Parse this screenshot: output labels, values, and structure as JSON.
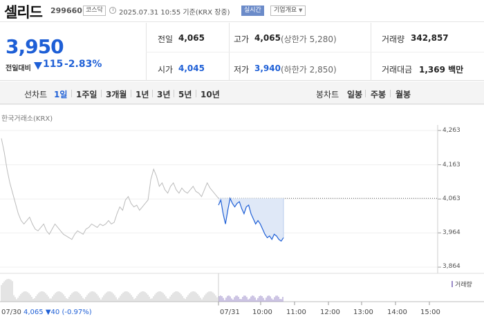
{
  "header": {
    "name": "셀리드",
    "code": "299660",
    "market": "코스닥",
    "timestamp": "2025.07.31 10:55 기준(KRX 장중)",
    "realtime_label": "실시간",
    "overview_label": "기업개요"
  },
  "price": {
    "current": "3,950",
    "change_label": "전일대비",
    "change_value": "115",
    "change_direction": "down",
    "change_pct": "-2.83%",
    "color": "#1e5fd6"
  },
  "stats": {
    "prev_close_label": "전일",
    "prev_close": "4,065",
    "high_label": "고가",
    "high": "4,065",
    "upper_limit": "(상한가 5,280)",
    "volume_label": "거래량",
    "volume": "342,857",
    "open_label": "시가",
    "open": "4,045",
    "low_label": "저가",
    "low": "3,940",
    "lower_limit": "(하한가 2,850)",
    "amount_label": "거래대금",
    "amount": "1,369 백만"
  },
  "tabs": {
    "line_label": "선차트",
    "line": [
      "1일",
      "1주일",
      "3개월",
      "1년",
      "3년",
      "5년",
      "10년"
    ],
    "active": "1일",
    "candle_label": "봉차트",
    "candle": [
      "일봉",
      "주봉",
      "월봉"
    ]
  },
  "chart": {
    "source": "한국거래소(KRX)",
    "y_ticks": [
      "4,263",
      "4,163",
      "4,063",
      "3,964",
      "3,864"
    ],
    "volume_label": "거래량",
    "x_ticks": [
      "07/31",
      "10:00",
      "11:00",
      "12:00",
      "13:00",
      "14:00",
      "15:00"
    ],
    "footer_date": "07/30",
    "footer_value": "4,065",
    "footer_change": "▼40 (-0.97%)"
  },
  "chart_data": {
    "type": "line",
    "title": "",
    "ylim": [
      3864,
      4263
    ],
    "reference_line": 4065,
    "series": [
      {
        "values": [
          4240,
          4200,
          4150,
          4110,
          4080,
          4050,
          4020,
          4000,
          3990,
          4000,
          4010,
          3990,
          3975,
          3970,
          3980,
          3990,
          3970,
          3960,
          3975,
          3990,
          3980,
          3970,
          3960,
          3955,
          3950,
          3945,
          3960,
          3970,
          3965,
          3960,
          3975,
          3980,
          3990,
          3985,
          3980,
          3990,
          3985,
          3990,
          4000,
          3990,
          3995,
          4020,
          4040,
          4030,
          4060,
          4070,
          4050,
          4040,
          4045,
          4030,
          4040,
          4050,
          4060,
          4120,
          4150,
          4130,
          4100,
          4110,
          4090,
          4080,
          4100,
          4110,
          4090,
          4080,
          4095,
          4085,
          4080,
          4090,
          4100,
          4085,
          4080,
          4070,
          4090,
          4110,
          4095,
          4085,
          4075,
          4065
        ]
      },
      {
        "values": [
          4045,
          4060,
          4020,
          3990,
          4030,
          4065,
          4050,
          4040,
          4050,
          4055,
          4035,
          4020,
          4040,
          4045,
          4020,
          4005,
          3990,
          4000,
          3990,
          3975,
          3960,
          3950,
          3955,
          3945,
          3960,
          3955,
          3945,
          3940,
          3950
        ]
      }
    ]
  }
}
